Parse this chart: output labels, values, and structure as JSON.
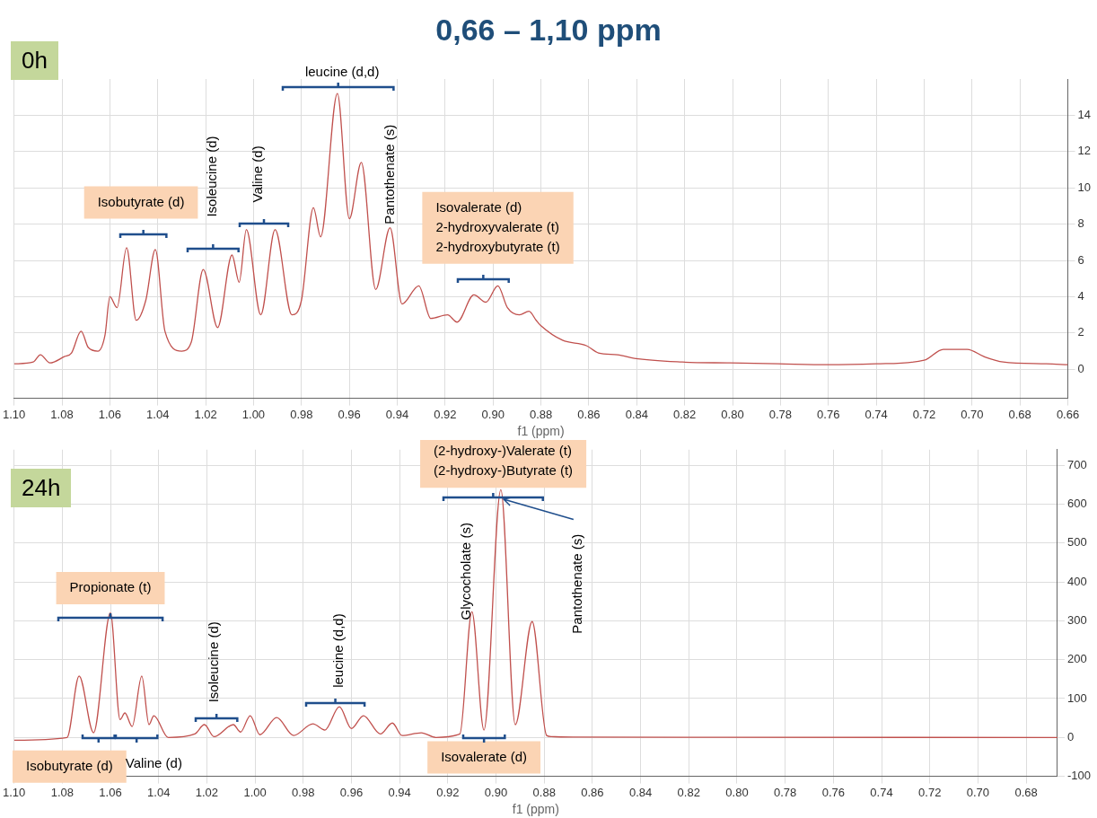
{
  "chart_data": [
    {
      "type": "line",
      "title": "0,66 – 1,10 ppm",
      "xlabel": "f1 (ppm)",
      "color": "#c0504d",
      "grid": true,
      "xlim": [
        1.1,
        0.66
      ],
      "ylim": [
        -1.6,
        16
      ],
      "xticks": [
        {
          "value": 1.1,
          "label": "1.10"
        },
        1.08,
        1.06,
        1.04,
        1.02,
        {
          "value": 1,
          "label": "1.00"
        },
        0.98,
        0.96,
        0.94,
        0.92,
        {
          "value": 0.9,
          "label": "0.90"
        },
        0.88,
        0.86,
        0.84,
        0.82,
        {
          "value": 0.8,
          "label": "0.80"
        },
        0.78,
        0.76,
        0.74,
        0.72,
        {
          "value": 0.7,
          "label": "0.70"
        },
        0.68,
        0.66
      ],
      "yticks": [
        0,
        2,
        4,
        6,
        8,
        10,
        12,
        14
      ],
      "x": [
        1.1,
        1.092,
        1.089,
        1.085,
        1.079,
        1.076,
        1.072,
        1.069,
        1.065,
        1.062,
        1.06,
        1.057,
        1.053,
        1.049,
        1.045,
        1.041,
        1.037,
        1.03,
        1.026,
        1.021,
        1.015,
        1.009,
        1.006,
        1.003,
        0.997,
        0.991,
        0.984,
        0.98,
        0.975,
        0.972,
        0.965,
        0.96,
        0.955,
        0.949,
        0.943,
        0.938,
        0.931,
        0.926,
        0.919,
        0.915,
        0.908,
        0.903,
        0.898,
        0.894,
        0.889,
        0.885,
        0.882,
        0.88,
        0.871,
        0.861,
        0.856,
        0.848,
        0.841,
        0.821,
        0.801,
        0.781,
        0.76,
        0.74,
        0.72,
        0.712,
        0.702,
        0.695,
        0.687,
        0.669,
        0.66
      ],
      "values": [
        0.3,
        0.4,
        0.8,
        0.35,
        0.7,
        0.9,
        2.1,
        1.2,
        1.0,
        1.9,
        4.0,
        3.4,
        6.7,
        2.7,
        3.8,
        6.6,
        2.1,
        1.0,
        1.5,
        5.5,
        2.3,
        6.3,
        4.8,
        7.7,
        3.0,
        7.7,
        3.0,
        3.8,
        8.9,
        7.3,
        15.2,
        8.3,
        11.4,
        4.4,
        7.8,
        3.6,
        4.6,
        2.8,
        3.0,
        2.6,
        4.1,
        3.7,
        4.6,
        3.4,
        3.0,
        3.2,
        2.7,
        2.4,
        1.6,
        1.3,
        0.9,
        0.8,
        0.6,
        0.4,
        0.35,
        0.3,
        0.25,
        0.3,
        0.5,
        1.1,
        1.1,
        0.7,
        0.4,
        0.3,
        0.25
      ],
      "annotations": [
        "0h",
        "Isobutyrate (d)",
        "Isoleucine (d)",
        "Valine (d)",
        "leucine (d,d)",
        "Pantothenate (s)",
        "Isovalerate (d)\n2-hydroxyvalerate (t)\n2-hydroxybutyrate (t)"
      ]
    },
    {
      "type": "line",
      "xlabel": "f1 (ppm)",
      "color": "#c0504d",
      "grid": true,
      "xlim": [
        1.1,
        0.667
      ],
      "ylim": [
        -100,
        740
      ],
      "xticks": [
        {
          "value": 1.1,
          "label": "1.10"
        },
        1.08,
        1.06,
        1.04,
        1.02,
        {
          "value": 1,
          "label": "1.00"
        },
        0.98,
        0.96,
        0.94,
        0.92,
        {
          "value": 0.9,
          "label": "0.90"
        },
        0.88,
        0.86,
        0.84,
        0.82,
        {
          "value": 0.8,
          "label": "0.80"
        },
        0.78,
        0.76,
        0.74,
        0.72,
        {
          "value": 0.7,
          "label": "0.70"
        },
        0.68
      ],
      "yticks": [
        -100,
        0,
        100,
        200,
        300,
        400,
        500,
        600,
        700
      ],
      "x": [
        1.1,
        1.078,
        1.073,
        1.067,
        1.06,
        1.056,
        1.054,
        1.051,
        1.047,
        1.044,
        1.042,
        1.036,
        1.025,
        1.021,
        1.017,
        1.009,
        1.006,
        1.002,
        0.998,
        0.991,
        0.984,
        0.976,
        0.971,
        0.965,
        0.96,
        0.955,
        0.948,
        0.943,
        0.939,
        0.931,
        0.925,
        0.915,
        0.91,
        0.905,
        0.898,
        0.892,
        0.885,
        0.879,
        0.877,
        0.868,
        0.667
      ],
      "values": [
        -7,
        0,
        158,
        12,
        320,
        46,
        63,
        28,
        158,
        33,
        56,
        0,
        9,
        33,
        2,
        33,
        14,
        56,
        7,
        51,
        5,
        35,
        19,
        79,
        23,
        56,
        9,
        37,
        5,
        12,
        0,
        9,
        323,
        19,
        637,
        33,
        298,
        5,
        2,
        1,
        0
      ],
      "annotations": [
        "24h",
        "Propionate (t)",
        "Isobutyrate (d)",
        "Valine (d)",
        "Isoleucine (d)",
        "leucine (d,d)",
        "Glycocholate (s)",
        "(2-hydroxy-)Valerate (t)\n(2-hydroxy-)Butyrate (t)",
        {
          "text": "Pantothenate (s)",
          "x": 0.897,
          "y": 612
        },
        "Isovalerate (d)"
      ]
    }
  ]
}
